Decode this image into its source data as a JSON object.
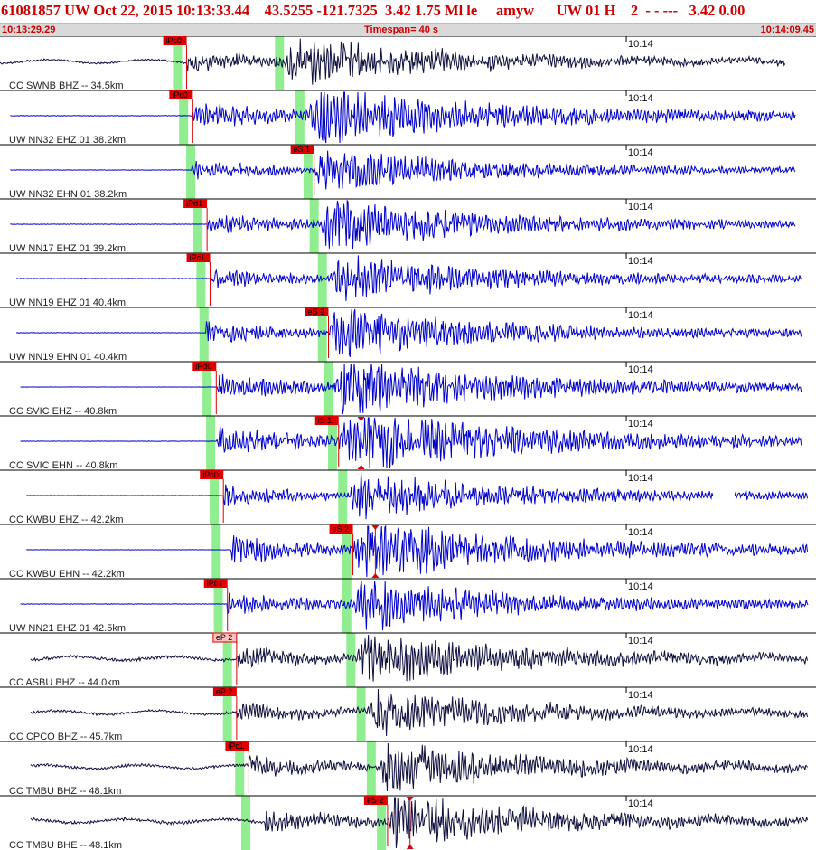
{
  "header": {
    "title": "61081857 UW Oct 22, 2015 10:13:33.44    43.5255 -121.7325  3.42 1.75 Ml le     amyw      UW 01 H    2  - - ---   3.42 0.00",
    "start_time": "10:13:29.29",
    "timespan": "Timespan=  40 s",
    "end_time": "10:14:09.45"
  },
  "colors": {
    "title": "#cc0000",
    "pick_box": "#e00000",
    "pick_box_light": "#ffc0c0",
    "pick_line": "#dd0000",
    "phase_band": "#90ee90",
    "trace_blue": "#0000cc",
    "trace_dark": "#101040"
  },
  "chart_data": {
    "type": "line",
    "time_range": [
      0,
      40
    ],
    "tick_label": "10:14",
    "tick_time": 30.7,
    "traces": [
      {
        "label": "CC SWNB BHZ -- 34.5km",
        "color": "dark",
        "start": 0.0,
        "end": 38.5,
        "amp": 0.55,
        "noise": 0.04,
        "picks": [
          {
            "text": "iPc0",
            "t": 9.15,
            "light": false
          }
        ],
        "s_time": 14.0,
        "s_mark": false,
        "gap": null,
        "seed": 11
      },
      {
        "label": "UW NN32 EHZ 01 38.2km",
        "color": "blue",
        "start": 0.5,
        "end": 39.0,
        "amp": 0.75,
        "noise": 0.01,
        "picks": [
          {
            "text": "iPc0",
            "t": 9.45,
            "light": false
          }
        ],
        "s_time": 15.0,
        "s_mark": false,
        "gap": null,
        "seed": 12
      },
      {
        "label": "UW NN32 EHN 01 38.2km",
        "color": "blue",
        "start": 0.5,
        "end": 39.0,
        "amp": 0.5,
        "noise": 0.01,
        "picks": [
          {
            "text": "eS 1",
            "t": 15.4,
            "light": false
          }
        ],
        "s_time": 15.4,
        "s_mark": false,
        "gap": null,
        "seed": 13
      },
      {
        "label": "UW NN17 EHZ 01 39.2km",
        "color": "blue",
        "start": 0.5,
        "end": 39.0,
        "amp": 0.6,
        "noise": 0.01,
        "picks": [
          {
            "text": "iPd1",
            "t": 10.15,
            "light": false
          }
        ],
        "s_time": 15.7,
        "s_mark": false,
        "gap": null,
        "seed": 14
      },
      {
        "label": "UW NN19 EHZ 01 40.4km",
        "color": "blue",
        "start": 0.8,
        "end": 39.3,
        "amp": 0.55,
        "noise": 0.01,
        "picks": [
          {
            "text": "iPc1",
            "t": 10.3,
            "light": false
          }
        ],
        "s_time": 16.1,
        "s_mark": false,
        "gap": null,
        "seed": 15
      },
      {
        "label": "UW NN19 EHN 01 40.4km",
        "color": "blue",
        "start": 0.8,
        "end": 39.3,
        "amp": 0.6,
        "noise": 0.01,
        "picks": [
          {
            "text": "eS 2",
            "t": 16.1,
            "light": false
          }
        ],
        "s_time": 16.1,
        "s_mark": false,
        "gap": null,
        "seed": 16
      },
      {
        "label": "CC SVIC EHZ -- 40.8km",
        "color": "blue",
        "start": 1.0,
        "end": 39.3,
        "amp": 0.7,
        "noise": 0.005,
        "picks": [
          {
            "text": "iPd0",
            "t": 10.6,
            "light": false
          }
        ],
        "s_time": 16.4,
        "s_mark": false,
        "gap": null,
        "seed": 17
      },
      {
        "label": "CC SVIC EHN -- 40.8km",
        "color": "blue",
        "start": 1.0,
        "end": 39.3,
        "amp": 0.8,
        "noise": 0.005,
        "picks": [
          {
            "text": "iS 1",
            "t": 16.6,
            "light": false
          }
        ],
        "s_time": 16.6,
        "s_mark": true,
        "gap": null,
        "seed": 18
      },
      {
        "label": "CC KWBU EHZ -- 42.2km",
        "color": "blue",
        "start": 1.3,
        "end": 39.6,
        "amp": 0.55,
        "noise": 0.005,
        "picks": [
          {
            "text": "iPc0",
            "t": 10.95,
            "light": false
          }
        ],
        "s_time": 17.1,
        "s_mark": false,
        "gap": [
          35.0,
          36.0
        ],
        "seed": 19
      },
      {
        "label": "CC KWBU EHN -- 42.2km",
        "color": "blue",
        "start": 1.3,
        "end": 39.6,
        "amp": 0.75,
        "noise": 0.005,
        "picks": [
          {
            "text": "eS 2",
            "t": 17.3,
            "light": false
          }
        ],
        "s_time": 17.3,
        "s_mark": true,
        "gap": null,
        "seed": 20
      },
      {
        "label": "UW NN21 EHZ 01 42.5km",
        "color": "blue",
        "start": 1.0,
        "end": 39.6,
        "amp": 0.6,
        "noise": 0.01,
        "picks": [
          {
            "text": "iPc1",
            "t": 11.15,
            "light": false
          }
        ],
        "s_time": 17.3,
        "s_mark": false,
        "gap": null,
        "seed": 21
      },
      {
        "label": "CC ASBU BHZ -- 44.0km",
        "color": "dark",
        "start": 1.5,
        "end": 39.6,
        "amp": 0.6,
        "noise": 0.06,
        "picks": [
          {
            "text": "eP 2",
            "t": 11.6,
            "light": true
          }
        ],
        "s_time": 17.5,
        "s_mark": false,
        "gap": null,
        "seed": 22
      },
      {
        "label": "CC CPCO BHZ -- 45.7km",
        "color": "dark",
        "start": 1.5,
        "end": 39.6,
        "amp": 0.5,
        "noise": 0.06,
        "picks": [
          {
            "text": "eP 2",
            "t": 11.6,
            "light": false
          }
        ],
        "s_time": 18.0,
        "s_mark": false,
        "gap": null,
        "seed": 23
      },
      {
        "label": "CC TMBU BHZ -- 48.1km",
        "color": "dark",
        "start": 1.5,
        "end": 39.6,
        "amp": 0.55,
        "noise": 0.06,
        "picks": [
          {
            "text": "iPc1",
            "t": 12.2,
            "light": false
          }
        ],
        "s_time": 18.5,
        "s_mark": false,
        "gap": null,
        "seed": 24
      },
      {
        "label": "CC TMBU BHE -- 48.1km",
        "color": "dark",
        "start": 1.5,
        "end": 39.6,
        "amp": 0.6,
        "noise": 0.06,
        "picks": [
          {
            "text": "eS 2",
            "t": 19.0,
            "light": false
          }
        ],
        "s_time": 19.0,
        "s_mark": true,
        "gap": null,
        "seed": 25
      }
    ]
  }
}
